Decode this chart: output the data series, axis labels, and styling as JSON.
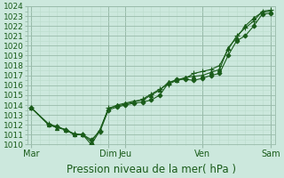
{
  "title": "",
  "xlabel": "Pression niveau de la mer( hPa )",
  "bg_color": "#cce8dd",
  "plot_bg_color": "#cce8dd",
  "grid_color_major": "#99bbaa",
  "grid_color_minor": "#bbddcc",
  "line_color": "#1a5c1a",
  "ylim": [
    1010,
    1024
  ],
  "yticks": [
    1010,
    1011,
    1012,
    1013,
    1014,
    1015,
    1016,
    1017,
    1018,
    1019,
    1020,
    1021,
    1022,
    1023,
    1024
  ],
  "series": [
    {
      "x": [
        0,
        2,
        3,
        4,
        5,
        6,
        7,
        8,
        9,
        10,
        11,
        12,
        13,
        14,
        15,
        16,
        17,
        18,
        19,
        20,
        21,
        22,
        23,
        24,
        25,
        26,
        27,
        28
      ],
      "y": [
        1013.7,
        1012.0,
        1011.8,
        1011.5,
        1011.0,
        1011.0,
        1010.5,
        1011.3,
        1013.5,
        1013.8,
        1014.0,
        1014.2,
        1014.3,
        1014.5,
        1015.0,
        1016.2,
        1016.6,
        1016.6,
        1016.5,
        1016.7,
        1017.0,
        1017.2,
        1019.0,
        1020.5,
        1021.0,
        1022.0,
        1023.2,
        1023.3
      ],
      "marker": "D",
      "ms": 2.5
    },
    {
      "x": [
        0,
        2,
        3,
        4,
        5,
        6,
        7,
        8,
        9,
        10,
        11,
        12,
        13,
        14,
        15,
        16,
        17,
        18,
        19,
        20,
        21,
        22,
        23,
        24,
        25,
        26,
        27,
        28
      ],
      "y": [
        1013.7,
        1012.0,
        1011.7,
        1011.5,
        1011.0,
        1011.0,
        1010.3,
        1011.5,
        1013.6,
        1014.0,
        1014.2,
        1014.4,
        1014.5,
        1015.0,
        1015.5,
        1016.3,
        1016.5,
        1016.8,
        1016.9,
        1017.0,
        1017.3,
        1017.6,
        1019.8,
        1020.8,
        1022.0,
        1022.8,
        1023.4,
        1023.5
      ],
      "marker": "^",
      "ms": 3
    },
    {
      "x": [
        0,
        2,
        3,
        4,
        5,
        6,
        7,
        8,
        9,
        10,
        11,
        12,
        13,
        14,
        15,
        16,
        17,
        18,
        19,
        20,
        21,
        22,
        23,
        24,
        25,
        26,
        27,
        28
      ],
      "y": [
        1013.7,
        1012.1,
        1011.8,
        1011.5,
        1011.1,
        1011.0,
        1010.0,
        1011.4,
        1013.7,
        1013.9,
        1014.1,
        1014.3,
        1014.6,
        1015.1,
        1015.6,
        1016.1,
        1016.5,
        1016.7,
        1017.2,
        1017.4,
        1017.6,
        1018.0,
        1019.6,
        1021.0,
        1021.8,
        1022.5,
        1023.5,
        1023.6
      ],
      "marker": "+",
      "ms": 4
    }
  ],
  "xlim": [
    -0.5,
    28.5
  ],
  "xtick_positions": [
    0,
    9,
    11,
    20,
    28
  ],
  "xtick_labels": [
    "Mar",
    "Dim",
    "Jeu",
    "Ven",
    "Sam"
  ],
  "vline_positions": [
    0,
    9,
    11,
    20,
    28
  ],
  "fontsize_xlabel": 8.5,
  "fontsize_ytick": 6.5,
  "fontsize_xtick": 7
}
